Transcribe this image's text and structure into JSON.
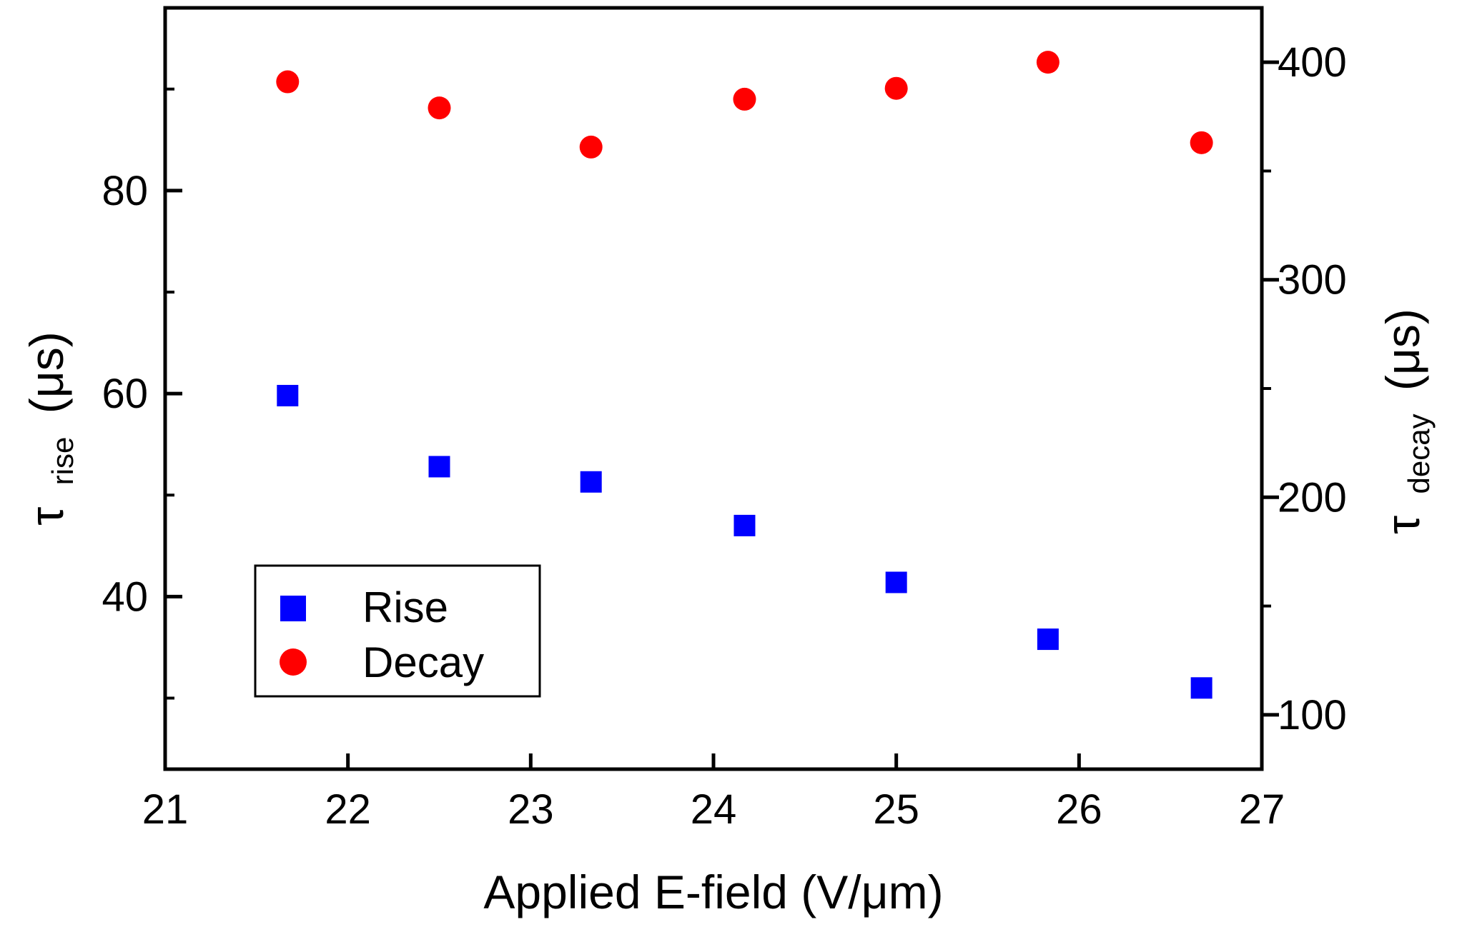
{
  "chart_data": {
    "type": "scatter",
    "xlabel": "Applied E-field (V/μm)",
    "ylabel_left": {
      "symbol": "τ",
      "subscript": "rise",
      "units": "(μs)"
    },
    "ylabel_right": {
      "symbol": "τ",
      "subscript": "decay",
      "units": "(μs)"
    },
    "xlim": [
      21,
      27
    ],
    "xticks": [
      21,
      22,
      23,
      24,
      25,
      26,
      27
    ],
    "ylim_left": [
      23,
      98
    ],
    "yticks_left_major": [
      40,
      60,
      80
    ],
    "yticks_left_minor": [
      30,
      50,
      70,
      90
    ],
    "ylim_right": [
      75,
      425
    ],
    "yticks_right_major": [
      100,
      200,
      300,
      400
    ],
    "yticks_right_minor": [
      150,
      250,
      350
    ],
    "legend_position": "lower-left",
    "series": [
      {
        "name": "Rise",
        "marker": "square",
        "color": "#0000ff",
        "axis": "left",
        "x": [
          21.67,
          22.5,
          23.33,
          24.17,
          25.0,
          25.83,
          26.67
        ],
        "y": [
          59.8,
          52.8,
          51.3,
          47.0,
          41.4,
          35.8,
          31.0
        ]
      },
      {
        "name": "Decay",
        "marker": "circle",
        "color": "#ff0000",
        "axis": "right",
        "x": [
          21.67,
          22.5,
          23.33,
          24.17,
          25.0,
          25.83,
          26.67
        ],
        "y": [
          391,
          379,
          361,
          383,
          388,
          400,
          363
        ]
      }
    ]
  }
}
